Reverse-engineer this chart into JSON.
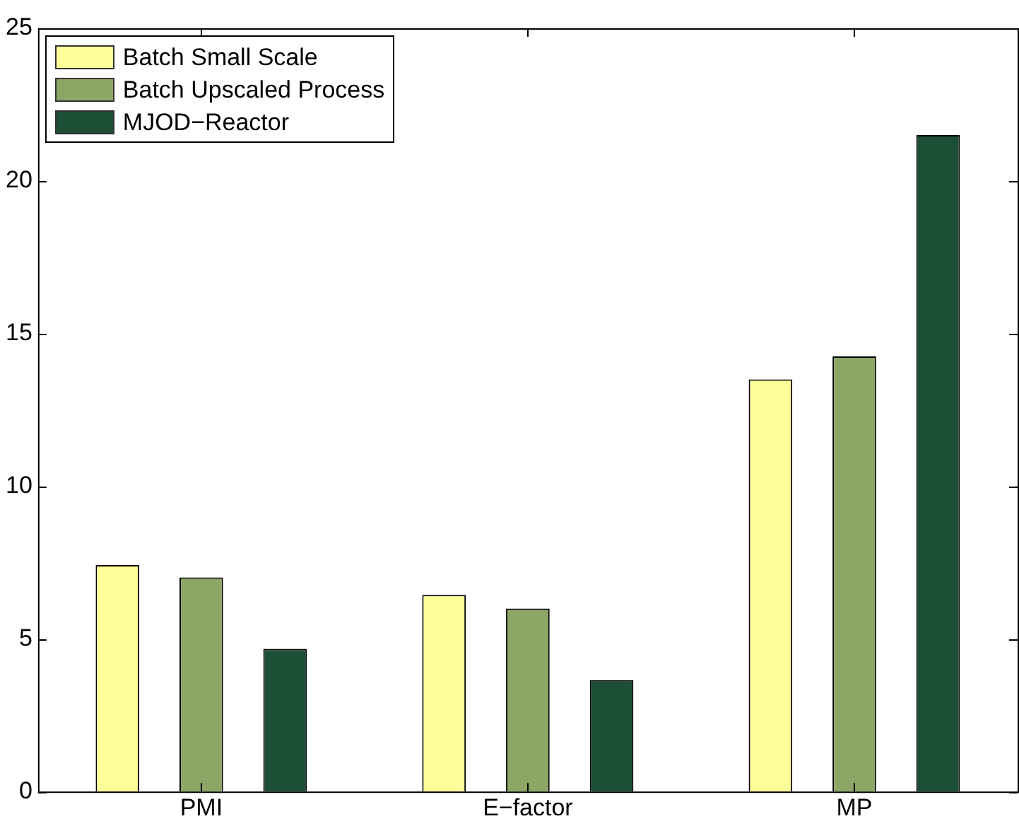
{
  "chart_data": {
    "type": "bar",
    "categories": [
      "PMI",
      "E−factor",
      "MP"
    ],
    "series": [
      {
        "name": "Batch Small Scale",
        "color": "#ffff99",
        "values": [
          7.42,
          6.44,
          13.5
        ]
      },
      {
        "name": "Batch Upscaled Process",
        "color": "#8ca665",
        "values": [
          7.01,
          5.99,
          14.25
        ]
      },
      {
        "name": "MJOD−Reactor",
        "color": "#1c4f35",
        "values": [
          4.67,
          3.65,
          21.5
        ]
      }
    ],
    "ylim": [
      0,
      25
    ],
    "yticks": [
      0,
      5,
      10,
      15,
      20,
      25
    ],
    "grid": false,
    "legend": "top left"
  }
}
